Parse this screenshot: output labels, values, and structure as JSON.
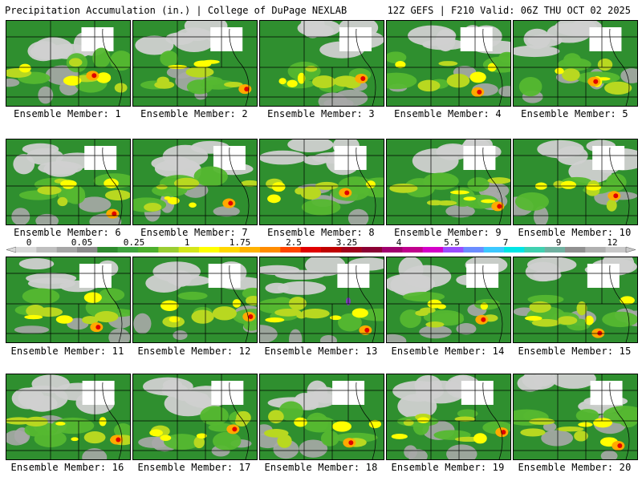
{
  "header": {
    "left_title": "Precipitation Accumulation (in.) | College of DuPage NEXLAB",
    "right_title": "12Z GEFS | F210 Valid: 06Z THU OCT 02 2025"
  },
  "colorbar": {
    "tick_labels": [
      "0",
      "0.05",
      "0.25",
      "1",
      "1.75",
      "2.5",
      "3.25",
      "4",
      "5.5",
      "7",
      "9",
      "12"
    ],
    "colors": [
      "#d9d9d9",
      "#bfbfbf",
      "#a6a6a6",
      "#8c8c8c",
      "#2e8b2e",
      "#3fa33f",
      "#4caf2e",
      "#9acd32",
      "#d4e61a",
      "#ffff00",
      "#ffd700",
      "#ffb300",
      "#ff8c00",
      "#ff4500",
      "#e00000",
      "#c00000",
      "#a0001a",
      "#8b0033",
      "#a0006e",
      "#c0008c",
      "#d400c8",
      "#9a4cff",
      "#6a8cff",
      "#3cc8ff",
      "#00e5e5",
      "#40d0b0",
      "#70b0a0",
      "#909090",
      "#b0b0b0",
      "#c8c8c8"
    ]
  },
  "members": [
    {
      "label": "Ensemble Member: 1"
    },
    {
      "label": "Ensemble Member: 2"
    },
    {
      "label": "Ensemble Member: 3"
    },
    {
      "label": "Ensemble Member: 4"
    },
    {
      "label": "Ensemble Member: 5"
    },
    {
      "label": "Ensemble Member: 6"
    },
    {
      "label": "Ensemble Member: 7"
    },
    {
      "label": "Ensemble Member: 8"
    },
    {
      "label": "Ensemble Member: 9"
    },
    {
      "label": "Ensemble Member: 10"
    },
    {
      "label": "Ensemble Member: 11"
    },
    {
      "label": "Ensemble Member: 12"
    },
    {
      "label": "Ensemble Member: 13"
    },
    {
      "label": "Ensemble Member: 14"
    },
    {
      "label": "Ensemble Member: 15"
    },
    {
      "label": "Ensemble Member: 16"
    },
    {
      "label": "Ensemble Member: 17"
    },
    {
      "label": "Ensemble Member: 18"
    },
    {
      "label": "Ensemble Member: 19"
    },
    {
      "label": "Ensemble Member: 20"
    }
  ],
  "palette": {
    "white": "#ffffff",
    "light_gray": "#d0d0d0",
    "gray": "#a8a8a8",
    "green": "#2f8f2f",
    "light_green": "#55b830",
    "yellow_green": "#b8d820",
    "yellow": "#ffff00",
    "orange": "#ffaa00",
    "red": "#e00000",
    "purple": "#8040c0",
    "border": "#000000"
  }
}
